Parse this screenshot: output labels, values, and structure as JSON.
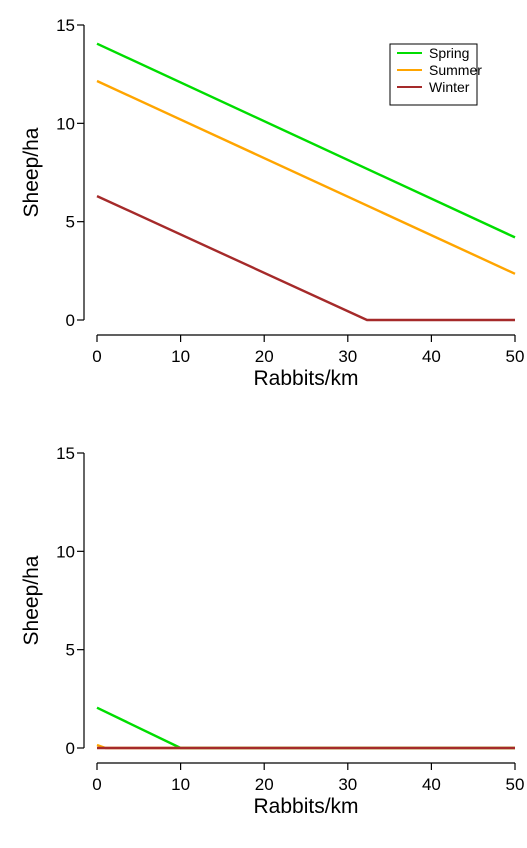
{
  "chart_data": [
    {
      "type": "line",
      "xlabel": "Rabbits/km",
      "ylabel": "Sheep/ha",
      "xlim": [
        0,
        50
      ],
      "ylim": [
        0,
        15
      ],
      "xticks": [
        0,
        10,
        20,
        30,
        40,
        50
      ],
      "yticks": [
        0,
        5,
        10,
        15
      ],
      "xtick_labels": [
        "0",
        "10",
        "20",
        "30",
        "40",
        "50"
      ],
      "ytick_labels": [
        "0",
        "5",
        "10",
        "15"
      ],
      "grid": false,
      "legend": {
        "placement": "top-right",
        "entries": [
          "Spring",
          "Summer",
          "Winter"
        ]
      },
      "series": [
        {
          "name": "Spring",
          "color": "#00dd00",
          "x": [
            0,
            50
          ],
          "y": [
            14.05,
            4.2
          ]
        },
        {
          "name": "Summer",
          "color": "#ffa500",
          "x": [
            0,
            50
          ],
          "y": [
            12.15,
            2.35
          ]
        },
        {
          "name": "Winter",
          "color": "#a52a2a",
          "x": [
            0,
            32.3,
            50
          ],
          "y": [
            6.3,
            0,
            0
          ]
        }
      ]
    },
    {
      "type": "line",
      "xlabel": "Rabbits/km",
      "ylabel": "Sheep/ha",
      "xlim": [
        0,
        50
      ],
      "ylim": [
        0,
        15
      ],
      "xticks": [
        0,
        10,
        20,
        30,
        40,
        50
      ],
      "yticks": [
        0,
        5,
        10,
        15
      ],
      "xtick_labels": [
        "0",
        "10",
        "20",
        "30",
        "40",
        "50"
      ],
      "ytick_labels": [
        "0",
        "5",
        "10",
        "15"
      ],
      "grid": false,
      "series": [
        {
          "name": "Spring",
          "color": "#00dd00",
          "x": [
            0,
            10,
            50
          ],
          "y": [
            2.05,
            0,
            0
          ]
        },
        {
          "name": "Summer",
          "color": "#ffa500",
          "x": [
            0,
            1,
            50
          ],
          "y": [
            0.15,
            0,
            0
          ]
        },
        {
          "name": "Winter",
          "color": "#a52a2a",
          "x": [
            0,
            50
          ],
          "y": [
            0,
            0
          ]
        }
      ]
    }
  ]
}
